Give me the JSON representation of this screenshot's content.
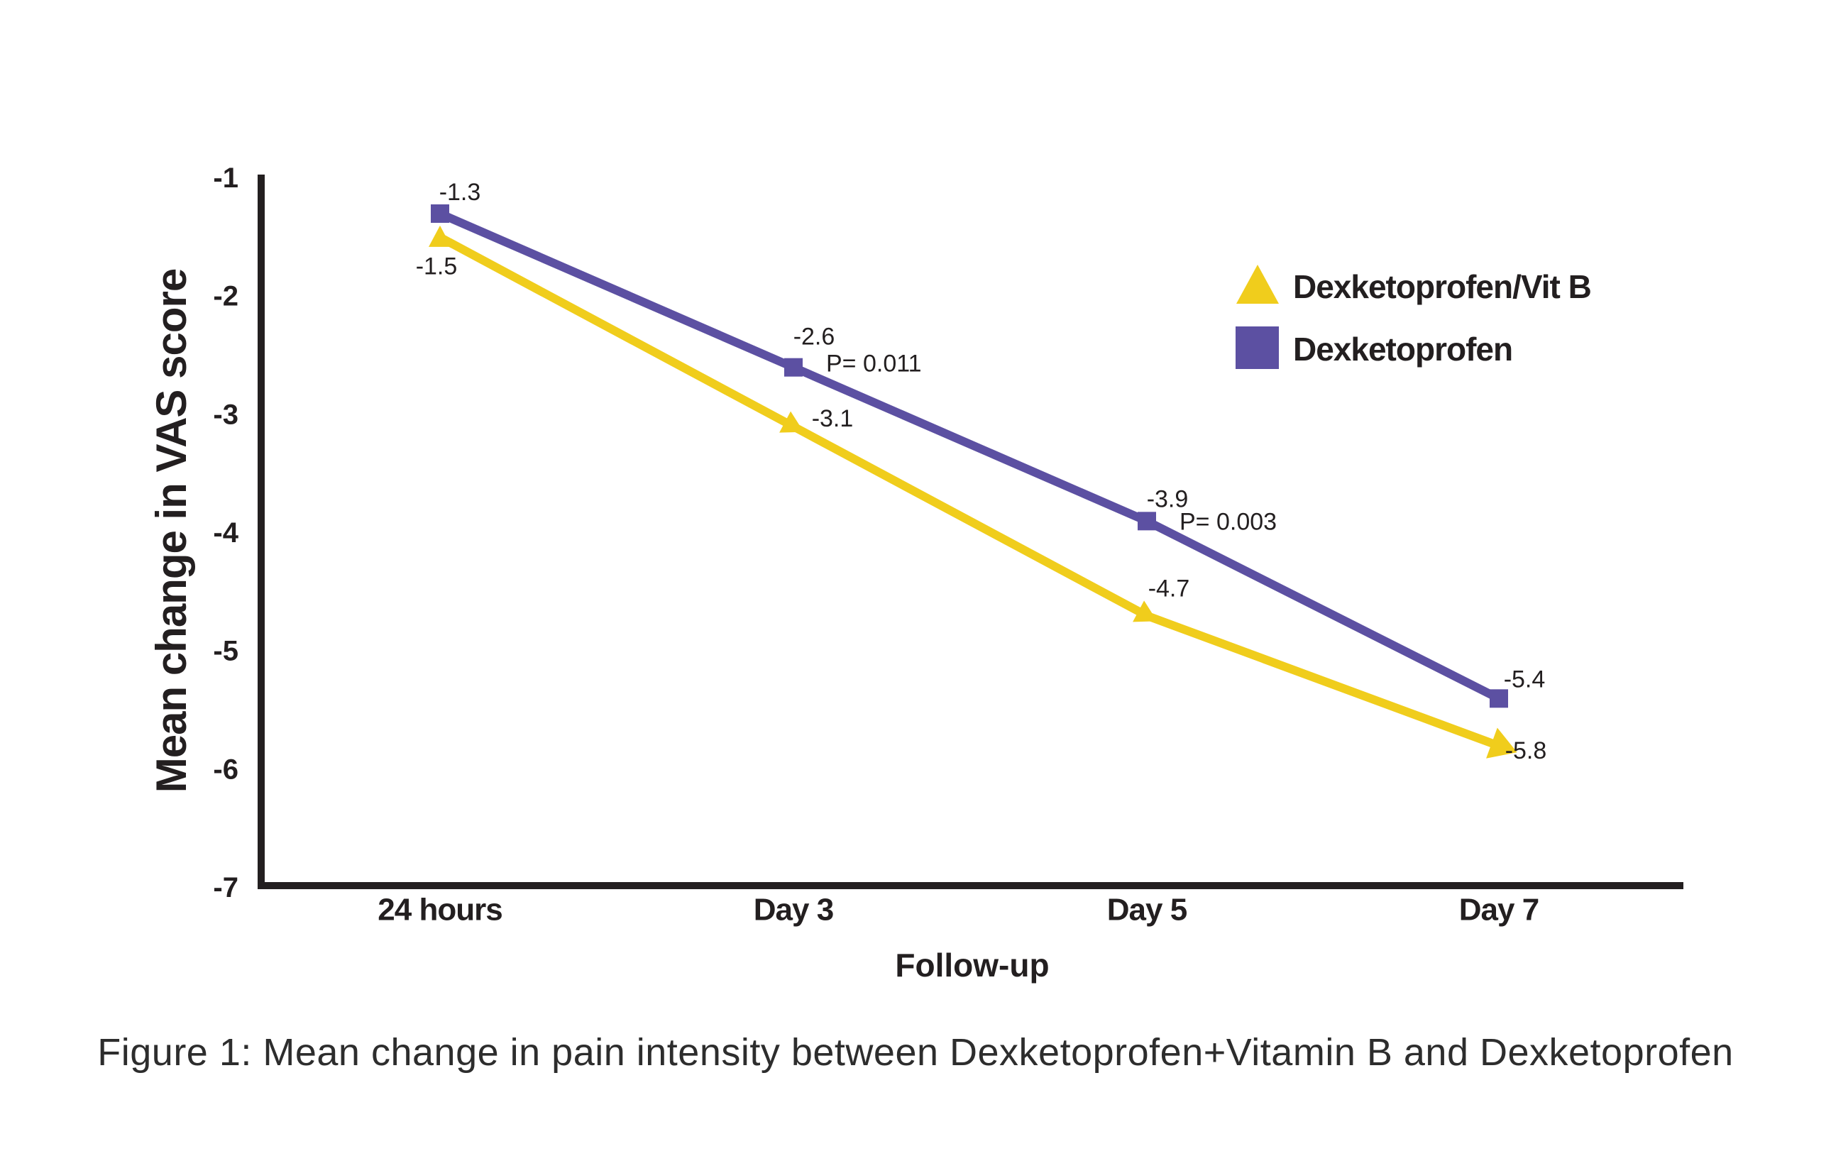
{
  "figure_caption": "Figure 1: Mean change in pain intensity between Dexketoprofen+Vitamin B and Dexketoprofen",
  "chart_data": {
    "type": "line",
    "title": "",
    "xlabel": "Follow-up",
    "ylabel": "Mean change in VAS score",
    "categories": [
      "24 hours",
      "Day 3",
      "Day 5",
      "Day 7"
    ],
    "ylim": [
      -7,
      -1
    ],
    "y_ticks": [
      "-1",
      "-2",
      "-3",
      "-4",
      "-5",
      "-6",
      "-7"
    ],
    "grid": false,
    "legend_position": "upper-right",
    "axis_color": "#231F20",
    "background_color": "#ffffff",
    "series": [
      {
        "name": "Dexketoprofen/Vit B",
        "marker": "triangle",
        "color": "#F0CD1C",
        "values": [
          -1.5,
          -3.1,
          -4.7,
          -5.8
        ],
        "point_labels": [
          "-1.5",
          "-3.1",
          "-4.7",
          "-5.8"
        ]
      },
      {
        "name": "Dexketoprofen",
        "marker": "square",
        "color": "#5C50A2",
        "values": [
          -1.3,
          -2.6,
          -3.9,
          -5.4
        ],
        "point_labels": [
          "-1.3",
          "-2.6",
          "-3.9",
          "-5.4"
        ]
      }
    ],
    "annotations": [
      {
        "text": "P= 0.011",
        "series": "Dexketoprofen",
        "category": "Day 3"
      },
      {
        "text": "P= 0.003",
        "series": "Dexketoprofen",
        "category": "Day 5"
      }
    ]
  }
}
